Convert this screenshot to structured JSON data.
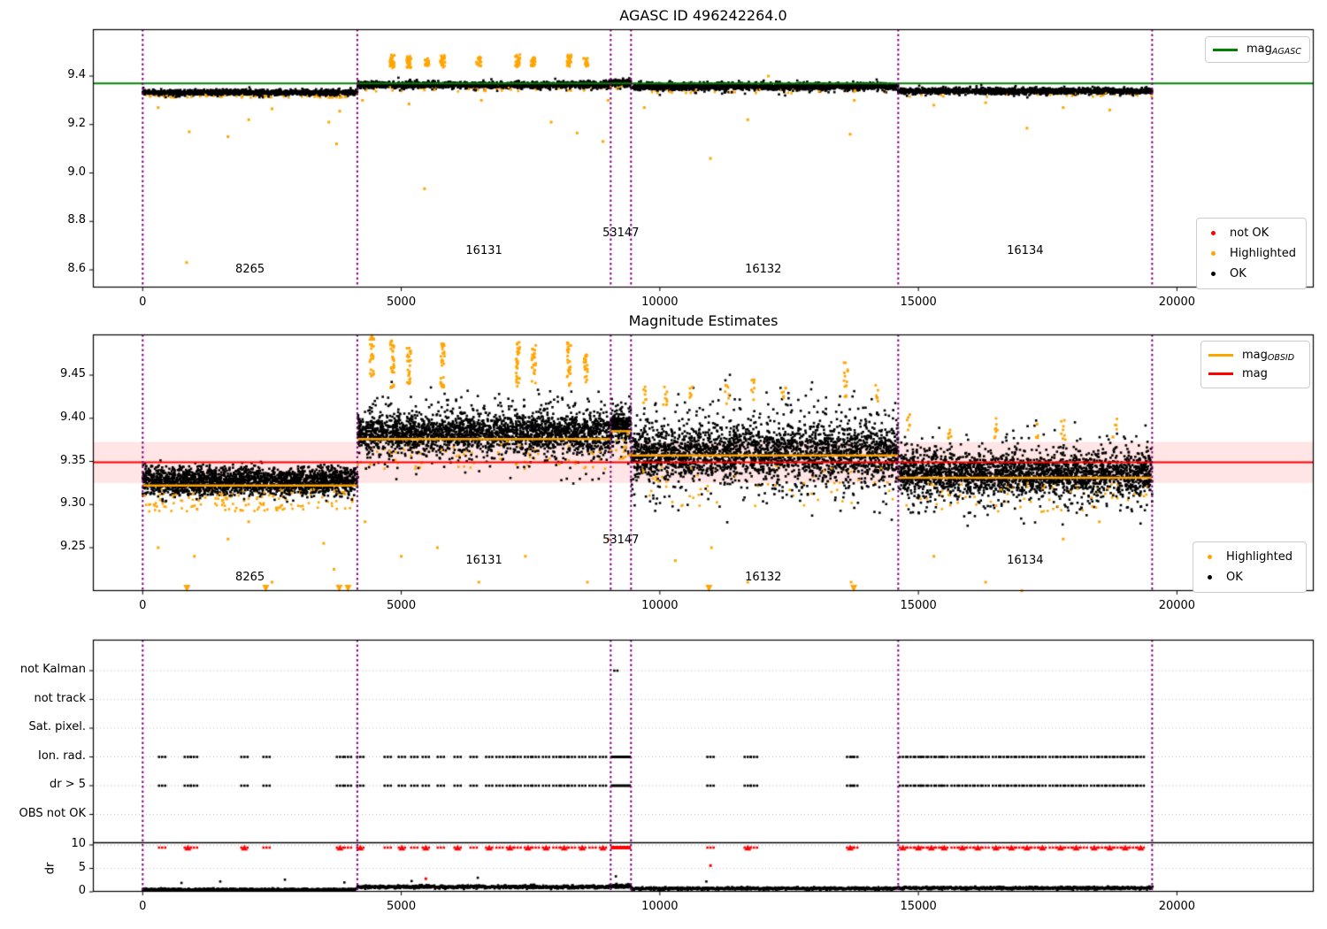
{
  "figure": {
    "background": "#ffffff",
    "colors": {
      "ok": "#000000",
      "highlighted": "#FFA500",
      "not_ok": "#FF0000",
      "mag_agasc_line": "#008000",
      "mag_line": "#FF0000",
      "mag_obsid_line": "#FFA500",
      "obsid_boundary": "#800080",
      "mag_err_band_fill": "rgba(255,0,0,0.10)",
      "grid": "#bbbbbb"
    }
  },
  "x_axis": {
    "ticks": [
      0,
      5000,
      10000,
      15000,
      20000
    ],
    "tick_labels": [
      "0",
      "5000",
      "10000",
      "15000",
      "20000"
    ]
  },
  "obsid_boundaries": [
    0,
    4150,
    9050,
    9443,
    14610,
    19520
  ],
  "chart_data": [
    {
      "type": "scatter",
      "title": "AGASC ID 496242264.0",
      "yticks": [
        9.4,
        9.2,
        9.0,
        8.8,
        8.6
      ],
      "ytick_labels": [
        "9.4",
        "9.2",
        "9.0",
        "8.8",
        "8.6"
      ],
      "ylim": [
        8.527,
        9.594
      ],
      "mag_agasc": 9.37,
      "legend_line": {
        "items": [
          {
            "label_main": "mag",
            "label_sub": "AGASC",
            "color": "#008000"
          }
        ]
      },
      "legend_points": {
        "items": [
          {
            "label": "not OK",
            "color": "#FF0000"
          },
          {
            "label": "Highlighted",
            "color": "#FFA500"
          },
          {
            "label": "OK",
            "color": "#000000"
          }
        ]
      },
      "series": [
        {
          "obsid": "8265",
          "x0": 0,
          "x1": 4150,
          "mag_mean": 9.332,
          "mag_spread": 0.009,
          "n": 1500,
          "spiky": false,
          "orange_frac": 0.05
        },
        {
          "obsid": "16131",
          "x0": 4150,
          "x1": 9050,
          "mag_mean": 9.363,
          "mag_spread": 0.011,
          "n": 1700,
          "spiky": false,
          "orange_frac": 0.03
        },
        {
          "obsid": "53147",
          "x0": 9050,
          "x1": 9443,
          "mag_mean": 9.372,
          "mag_spread": 0.011,
          "n": 220,
          "spiky": false,
          "orange_frac": 0.03
        },
        {
          "obsid": "16132",
          "x0": 9443,
          "x1": 14610,
          "mag_mean": 9.357,
          "mag_spread": 0.012,
          "n": 1800,
          "spiky": false,
          "orange_frac": 0.02
        },
        {
          "obsid": "16134",
          "x0": 14610,
          "x1": 19520,
          "mag_mean": 9.338,
          "mag_spread": 0.01,
          "n": 1700,
          "spiky": false,
          "orange_frac": 0.02
        }
      ],
      "orange_clusters": [
        {
          "x": 4825,
          "y0": 9.43,
          "y1": 9.49,
          "n": 28
        },
        {
          "x": 5150,
          "y0": 9.435,
          "y1": 9.485,
          "n": 24
        },
        {
          "x": 5500,
          "y0": 9.44,
          "y1": 9.48,
          "n": 20
        },
        {
          "x": 5800,
          "y0": 9.435,
          "y1": 9.49,
          "n": 24
        },
        {
          "x": 6500,
          "y0": 9.44,
          "y1": 9.48,
          "n": 18
        },
        {
          "x": 7250,
          "y0": 9.435,
          "y1": 9.49,
          "n": 26
        },
        {
          "x": 7550,
          "y0": 9.44,
          "y1": 9.485,
          "n": 22
        },
        {
          "x": 8250,
          "y0": 9.435,
          "y1": 9.49,
          "n": 26
        },
        {
          "x": 8570,
          "y0": 9.44,
          "y1": 9.475,
          "n": 16
        }
      ],
      "orange_outliers": [
        [
          300,
          9.27
        ],
        [
          850,
          8.63
        ],
        [
          900,
          9.17
        ],
        [
          1650,
          9.15
        ],
        [
          2050,
          9.22
        ],
        [
          2500,
          9.265
        ],
        [
          3600,
          9.21
        ],
        [
          3750,
          9.12
        ],
        [
          3810,
          9.255
        ],
        [
          4250,
          9.3
        ],
        [
          5150,
          9.285
        ],
        [
          5450,
          8.935
        ],
        [
          6550,
          9.3
        ],
        [
          7900,
          9.21
        ],
        [
          8400,
          9.165
        ],
        [
          8900,
          9.13
        ],
        [
          9000,
          9.3
        ],
        [
          9700,
          9.27
        ],
        [
          10980,
          9.06
        ],
        [
          11700,
          9.22
        ],
        [
          12100,
          9.4
        ],
        [
          13680,
          9.16
        ],
        [
          13760,
          9.3
        ],
        [
          15300,
          9.28
        ],
        [
          16300,
          9.29
        ],
        [
          17100,
          9.185
        ],
        [
          17800,
          9.27
        ],
        [
          18700,
          9.26
        ]
      ],
      "segment_labels": [
        {
          "obsid": "8265",
          "x": 2075,
          "mag": 8.6
        },
        {
          "obsid": "16131",
          "x": 6600,
          "mag": 8.675
        },
        {
          "obsid": "53147",
          "x": 9246,
          "mag": 8.75
        },
        {
          "obsid": "16132",
          "x": 12000,
          "mag": 8.6
        },
        {
          "obsid": "16134",
          "x": 17065,
          "mag": 8.675
        }
      ]
    },
    {
      "type": "scatter",
      "title": "Magnitude Estimates",
      "yticks": [
        9.45,
        9.4,
        9.35,
        9.3,
        9.25
      ],
      "ytick_labels": [
        "9.45",
        "9.40",
        "9.35",
        "9.30",
        "9.25"
      ],
      "ylim": [
        9.2,
        9.497
      ],
      "mag": 9.349,
      "mag_err_band": [
        9.325,
        9.3725
      ],
      "legend_lines": {
        "items": [
          {
            "label_main": "mag",
            "label_sub": "OBSID",
            "color": "#FFA500"
          },
          {
            "label_main": "mag",
            "label_sub": "",
            "color": "#FF0000"
          }
        ]
      },
      "legend_points": {
        "items": [
          {
            "label": "Highlighted",
            "color": "#FFA500"
          },
          {
            "label": "OK",
            "color": "#000000"
          }
        ]
      },
      "series": [
        {
          "obsid": "8265",
          "x0": 0,
          "x1": 4150,
          "mag_obsid": 9.322,
          "mag_mean": 9.327,
          "mag_spread": 0.016,
          "n": 2300,
          "spiky": false,
          "orange_frac": 0.07
        },
        {
          "obsid": "16131",
          "x0": 4150,
          "x1": 9050,
          "mag_obsid": 9.376,
          "mag_mean": 9.383,
          "mag_spread": 0.019,
          "n": 2600,
          "spiky": true,
          "orange_frac": 0.03
        },
        {
          "obsid": "53147",
          "x0": 9050,
          "x1": 9443,
          "mag_obsid": 9.385,
          "mag_mean": 9.39,
          "mag_spread": 0.017,
          "n": 280,
          "spiky": true,
          "orange_frac": 0.04
        },
        {
          "obsid": "16132",
          "x0": 9443,
          "x1": 14610,
          "mag_obsid": 9.357,
          "mag_mean": 9.36,
          "mag_spread": 0.028,
          "n": 2700,
          "spiky": true,
          "orange_frac": 0.02
        },
        {
          "obsid": "16134",
          "x0": 14610,
          "x1": 19520,
          "mag_obsid": 9.331,
          "mag_mean": 9.335,
          "mag_spread": 0.02,
          "n": 2500,
          "spiky": true,
          "orange_frac": 0.03
        }
      ],
      "orange_clusters": [
        {
          "x": 4430,
          "y0": 9.44,
          "y1": 9.496,
          "n": 20
        },
        {
          "x": 4825,
          "y0": 9.435,
          "y1": 9.49,
          "n": 30
        },
        {
          "x": 5150,
          "y0": 9.44,
          "y1": 9.485,
          "n": 26
        },
        {
          "x": 5800,
          "y0": 9.435,
          "y1": 9.49,
          "n": 28
        },
        {
          "x": 7254,
          "y0": 9.435,
          "y1": 9.49,
          "n": 30
        },
        {
          "x": 7562,
          "y0": 9.44,
          "y1": 9.485,
          "n": 24
        },
        {
          "x": 8246,
          "y0": 9.435,
          "y1": 9.49,
          "n": 28
        },
        {
          "x": 8571,
          "y0": 9.44,
          "y1": 9.48,
          "n": 20
        },
        {
          "x": 9700,
          "y0": 9.415,
          "y1": 9.44,
          "n": 8
        },
        {
          "x": 10100,
          "y0": 9.415,
          "y1": 9.44,
          "n": 8
        },
        {
          "x": 10600,
          "y0": 9.42,
          "y1": 9.44,
          "n": 6
        },
        {
          "x": 11300,
          "y0": 9.415,
          "y1": 9.445,
          "n": 8
        },
        {
          "x": 11800,
          "y0": 9.42,
          "y1": 9.45,
          "n": 8
        },
        {
          "x": 12400,
          "y0": 9.415,
          "y1": 9.44,
          "n": 6
        },
        {
          "x": 13600,
          "y0": 9.42,
          "y1": 9.465,
          "n": 14
        },
        {
          "x": 14200,
          "y0": 9.415,
          "y1": 9.44,
          "n": 6
        },
        {
          "x": 14800,
          "y0": 9.375,
          "y1": 9.405,
          "n": 6
        },
        {
          "x": 15600,
          "y0": 9.375,
          "y1": 9.4,
          "n": 6
        },
        {
          "x": 16500,
          "y0": 9.375,
          "y1": 9.405,
          "n": 8
        },
        {
          "x": 17300,
          "y0": 9.375,
          "y1": 9.4,
          "n": 6
        },
        {
          "x": 17800,
          "y0": 9.375,
          "y1": 9.405,
          "n": 8
        },
        {
          "x": 18800,
          "y0": 9.375,
          "y1": 9.4,
          "n": 6
        }
      ],
      "orange_outliers": [
        [
          300,
          9.25
        ],
        [
          850,
          9.205
        ],
        [
          1000,
          9.24
        ],
        [
          1650,
          9.26
        ],
        [
          2050,
          9.28
        ],
        [
          2500,
          9.21
        ],
        [
          3500,
          9.255
        ],
        [
          3700,
          9.225
        ],
        [
          4300,
          9.28
        ],
        [
          5000,
          9.24
        ],
        [
          5700,
          9.25
        ],
        [
          6500,
          9.21
        ],
        [
          7400,
          9.24
        ],
        [
          8600,
          9.21
        ],
        [
          9000,
          9.26
        ],
        [
          10300,
          9.235
        ],
        [
          11000,
          9.25
        ],
        [
          11700,
          9.21
        ],
        [
          13700,
          9.21
        ],
        [
          15300,
          9.24
        ],
        [
          16300,
          9.21
        ],
        [
          17000,
          9.2
        ],
        [
          17800,
          9.26
        ],
        [
          18500,
          9.28
        ]
      ],
      "clipped_low_x": [
        855,
        2380,
        3800,
        3970,
        10950,
        13750
      ],
      "clipped_high_x": [
        4430
      ],
      "segment_labels": [
        {
          "obsid": "8265",
          "x": 2075,
          "mag": 9.215
        },
        {
          "obsid": "16131",
          "x": 6600,
          "mag": 9.235
        },
        {
          "obsid": "53147",
          "x": 9246,
          "mag": 9.258
        },
        {
          "obsid": "16132",
          "x": 12000,
          "mag": 9.215
        },
        {
          "obsid": "16134",
          "x": 17065,
          "mag": 9.235
        }
      ]
    },
    {
      "type": "flags_and_line",
      "categories": [
        "not Kalman",
        "not track",
        "Sat. pixel.",
        "Ion. rad.",
        "dr > 5",
        "OBS not OK"
      ],
      "ylabel": "dr",
      "dr_ticks": [
        10,
        5,
        0
      ],
      "dr_tick_labels": [
        "10",
        "5",
        "0"
      ],
      "flag_events_x": [
        376,
        872,
        992,
        1967,
        2395,
        3815,
        3969,
        4208,
        4738,
        5012,
        5252,
        5474,
        5765,
        6090,
        6400,
        6700,
        6900,
        7100,
        7250,
        7450,
        7600,
        7800,
        8000,
        8150,
        8300,
        8500,
        8700,
        8900,
        10980,
        11700,
        11820,
        13680,
        13760,
        14700,
        14850,
        15000,
        15100,
        15250,
        15400,
        15500,
        15700,
        15850,
        16000,
        16150,
        16300,
        16500,
        16650,
        16800,
        16950,
        17100,
        17250,
        17400,
        17600,
        17750,
        17900,
        18050,
        18200,
        18400,
        18550,
        18700,
        18850,
        19000,
        19150,
        19300
      ],
      "flag_runs": [
        [
          9050,
          9440
        ]
      ],
      "flag_rows_with_events": [
        "Ion. rad.",
        "dr > 5"
      ],
      "not_kalman_events_x": [
        9120
      ],
      "dr_clip_value": 10,
      "dr_series": [
        {
          "obsid": "8265",
          "x0": 0,
          "x1": 4150,
          "dr_mean": 0.5,
          "dr_sd": 0.22,
          "n": 560
        },
        {
          "obsid": "16131",
          "x0": 4150,
          "x1": 9050,
          "dr_mean": 1.05,
          "dr_sd": 0.35,
          "n": 650
        },
        {
          "obsid": "53147",
          "x0": 9050,
          "x1": 9443,
          "dr_mean": 1.2,
          "dr_sd": 0.4,
          "n": 70
        },
        {
          "obsid": "16132",
          "x0": 9443,
          "x1": 14610,
          "dr_mean": 0.7,
          "dr_sd": 0.28,
          "n": 690
        },
        {
          "obsid": "16134",
          "x0": 14610,
          "x1": 19520,
          "dr_mean": 0.8,
          "dr_sd": 0.3,
          "n": 650
        }
      ],
      "dr_outliers_black": [
        {
          "x": 750,
          "dr": 1.9
        },
        {
          "x": 1500,
          "dr": 2.2
        },
        {
          "x": 2750,
          "dr": 2.6
        },
        {
          "x": 3900,
          "dr": 2.0
        },
        {
          "x": 5200,
          "dr": 2.3
        },
        {
          "x": 6480,
          "dr": 3.0
        },
        {
          "x": 9150,
          "dr": 3.3
        },
        {
          "x": 10900,
          "dr": 2.2
        }
      ],
      "dr_outliers_red": [
        {
          "x": 5475,
          "dr": 2.8
        },
        {
          "x": 10980,
          "dr": 5.6
        }
      ]
    }
  ]
}
